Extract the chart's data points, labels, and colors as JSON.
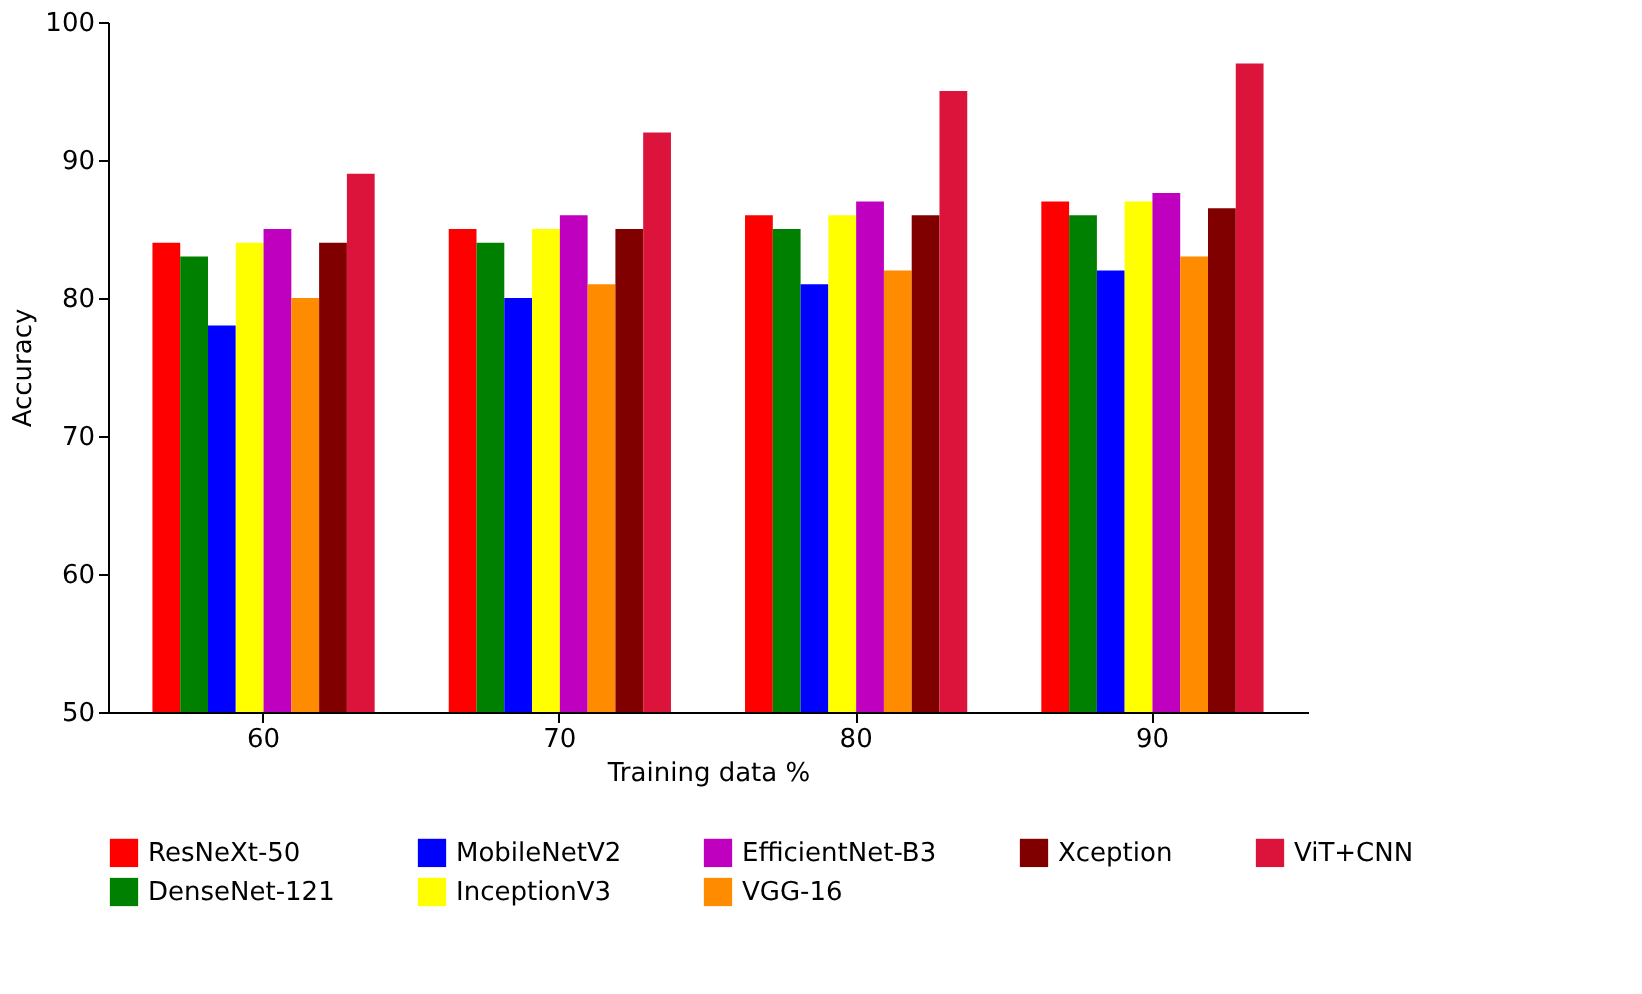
{
  "chart_data": {
    "type": "bar",
    "xlabel": "Training data %",
    "ylabel": "Accuracy",
    "categories": [
      "60",
      "70",
      "80",
      "90"
    ],
    "series": [
      {
        "name": "ResNeXt-50",
        "color": "#ff0000",
        "values": [
          84,
          85,
          86,
          87
        ]
      },
      {
        "name": "DenseNet-121",
        "color": "#008000",
        "values": [
          83,
          84,
          85,
          86
        ]
      },
      {
        "name": "MobileNetV2",
        "color": "#0000ff",
        "values": [
          78,
          80,
          81,
          82
        ]
      },
      {
        "name": "InceptionV3",
        "color": "#ffff00",
        "values": [
          84,
          85,
          86,
          87
        ]
      },
      {
        "name": "EfficientNet-B3",
        "color": "#bf00bf",
        "values": [
          85,
          86,
          87,
          87.6
        ]
      },
      {
        "name": "VGG-16",
        "color": "#ff8c00",
        "values": [
          80,
          81,
          82,
          83
        ]
      },
      {
        "name": "Xception",
        "color": "#800000",
        "values": [
          84,
          85,
          86,
          86.5
        ]
      },
      {
        "name": "ViT+CNN",
        "color": "#dc143c",
        "values": [
          89,
          92,
          95,
          97
        ]
      }
    ],
    "ylim": [
      50,
      100
    ],
    "yticks": [
      50,
      60,
      70,
      80,
      90,
      100
    ],
    "grid": false,
    "legend": "bottom"
  }
}
